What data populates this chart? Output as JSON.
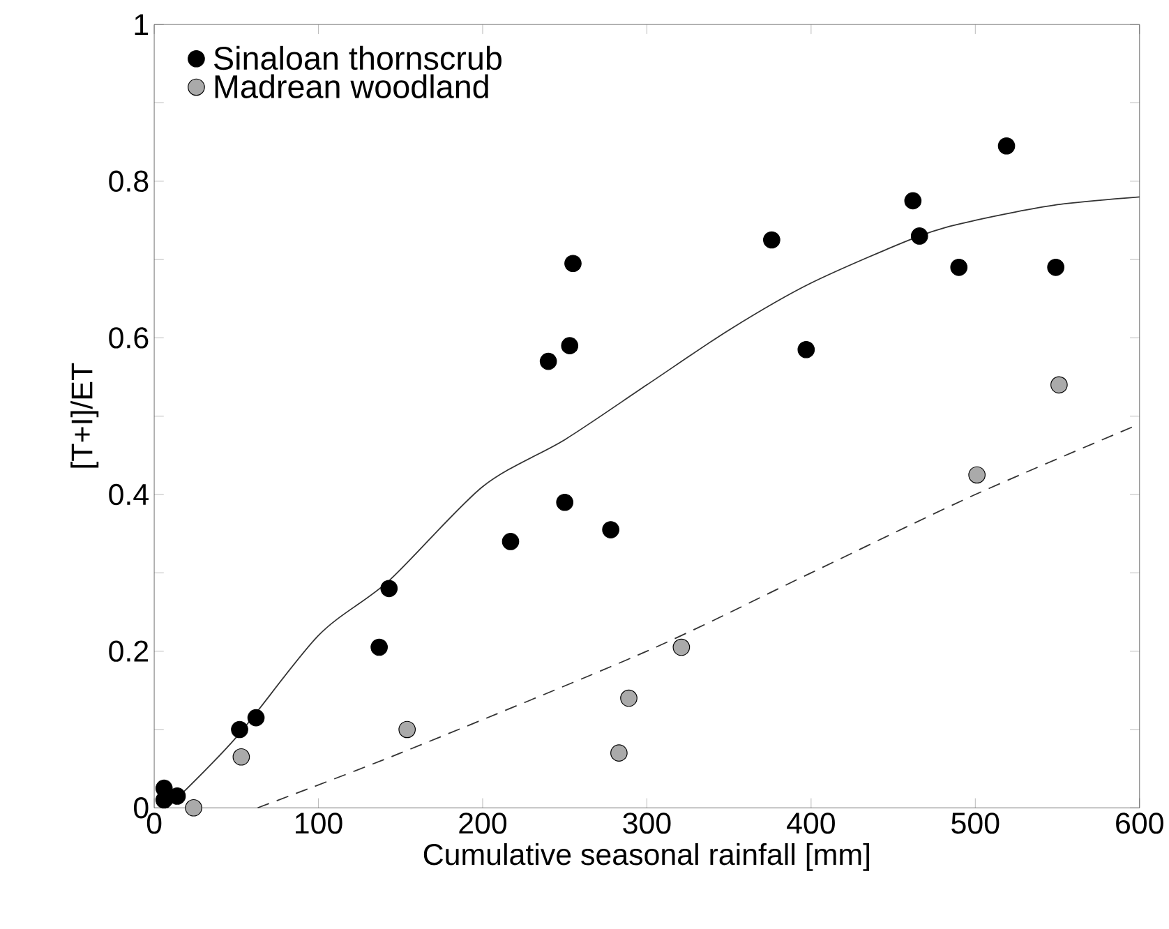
{
  "chart_data": {
    "type": "scatter",
    "xlabel": "Cumulative seasonal rainfall [mm]",
    "ylabel": "[T+I]/ET",
    "xlim": [
      0,
      600
    ],
    "ylim": [
      0,
      1
    ],
    "xticks": [
      0,
      100,
      200,
      300,
      400,
      500,
      600
    ],
    "yticks": [
      0,
      {
        "value": 0.1,
        "label": null
      },
      0.2,
      {
        "value": 0.3,
        "label": null
      },
      0.4,
      {
        "value": 0.5,
        "label": null
      },
      0.6,
      {
        "value": 0.7,
        "label": null
      },
      0.8,
      {
        "value": 0.9,
        "label": null
      },
      1
    ],
    "grid": false,
    "legend": "top left",
    "series": [
      {
        "name": "Sinaloan thornscrub",
        "marker": "circle",
        "color": "#000000",
        "x": [
          6,
          6,
          14,
          52,
          62,
          137,
          143,
          217,
          240,
          250,
          253,
          255,
          278,
          376,
          397,
          462,
          466,
          490,
          519,
          549
        ],
        "values": [
          0.01,
          0.025,
          0.015,
          0.1,
          0.115,
          0.205,
          0.28,
          0.34,
          0.57,
          0.39,
          0.59,
          0.695,
          0.355,
          0.725,
          0.585,
          0.775,
          0.73,
          0.69,
          0.845,
          0.69
        ]
      },
      {
        "name": "Madrean woodland",
        "marker": "circle",
        "color": "#aaaaaa",
        "x": [
          24,
          53,
          154,
          283,
          289,
          321,
          501,
          551
        ],
        "values": [
          0,
          0.065,
          0.1,
          0.07,
          0.14,
          0.205,
          0.425,
          0.54
        ]
      },
      {
        "type": "line",
        "marker": "none",
        "color": "#333333",
        "line_style": "solid",
        "x": [
          8,
          50,
          100,
          143,
          200,
          250,
          300,
          350,
          400,
          466,
          500,
          550,
          600
        ],
        "values": [
          0,
          0.09,
          0.22,
          0.29,
          0.41,
          0.47,
          0.54,
          0.61,
          0.67,
          0.73,
          0.75,
          0.77,
          0.78
        ]
      },
      {
        "type": "line",
        "marker": "none",
        "color": "#333333",
        "line_style": "dashed",
        "x": [
          63,
          150,
          300,
          400,
          500,
          600
        ],
        "values": [
          0,
          0.07,
          0.2,
          0.3,
          0.4,
          0.49
        ]
      }
    ]
  }
}
